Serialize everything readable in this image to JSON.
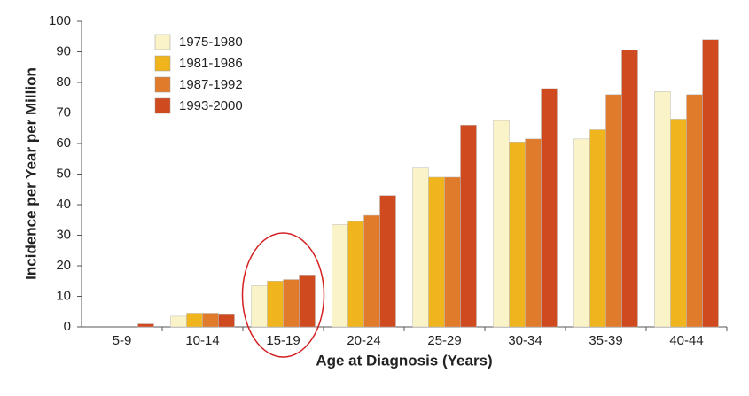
{
  "chart_data": {
    "type": "bar",
    "x_label": "Age at Diagnosis (Years)",
    "y_label": "Incidence per Year per Million",
    "categories": [
      "5-9",
      "10-14",
      "15-19",
      "20-24",
      "25-29",
      "30-34",
      "35-39",
      "40-44"
    ],
    "series": [
      {
        "name": "1975-1980",
        "color": "#fbf3c8",
        "values": [
          0,
          3.5,
          13.5,
          33.5,
          52,
          67.5,
          61.5,
          77
        ]
      },
      {
        "name": "1981-1986",
        "color": "#f0b41c",
        "values": [
          0,
          4.5,
          15,
          34.5,
          49,
          60.5,
          64.5,
          68
        ]
      },
      {
        "name": "1987-1992",
        "color": "#e07b2c",
        "values": [
          0,
          4.5,
          15.5,
          36.5,
          49,
          61.5,
          76,
          76
        ]
      },
      {
        "name": "1993-2000",
        "color": "#cf4a1e",
        "values": [
          1,
          4,
          17,
          43,
          66,
          78,
          90.5,
          94
        ]
      }
    ],
    "ylim": [
      0,
      100
    ],
    "yticks": [
      0,
      10,
      20,
      30,
      40,
      50,
      60,
      70,
      80,
      90,
      100
    ],
    "grid": false,
    "legend": "upper left"
  }
}
